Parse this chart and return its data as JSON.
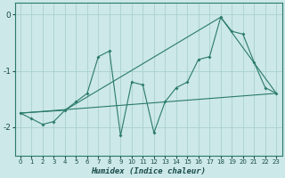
{
  "xlabel": "Humidex (Indice chaleur)",
  "bg_color": "#cce8e8",
  "grid_color": "#aacfcf",
  "line_color": "#2a7a6a",
  "xlim": [
    -0.5,
    23.5
  ],
  "ylim": [
    -2.5,
    0.2
  ],
  "yticks": [
    0,
    -1,
    -2
  ],
  "xticks": [
    0,
    1,
    2,
    3,
    4,
    5,
    6,
    7,
    8,
    9,
    10,
    11,
    12,
    13,
    14,
    15,
    16,
    17,
    18,
    19,
    20,
    21,
    22,
    23
  ],
  "series1_x": [
    0,
    1,
    2,
    3,
    4,
    5,
    6,
    7,
    8,
    9,
    10,
    11,
    12,
    13,
    14,
    15,
    16,
    17,
    18,
    19,
    20,
    21,
    22,
    23
  ],
  "series1_y": [
    -1.75,
    -1.85,
    -1.95,
    -1.9,
    -1.7,
    -1.55,
    -1.4,
    -0.75,
    -0.65,
    -2.15,
    -1.2,
    -1.25,
    -2.1,
    -1.55,
    -1.3,
    -1.2,
    -0.8,
    -0.75,
    -0.05,
    -0.3,
    -0.35,
    -0.85,
    -1.3,
    -1.4
  ],
  "series2_x": [
    0,
    23
  ],
  "series2_y": [
    -1.75,
    -1.4
  ],
  "series3_x": [
    0,
    4,
    18,
    23
  ],
  "series3_y": [
    -1.75,
    -1.7,
    -0.05,
    -1.4
  ]
}
